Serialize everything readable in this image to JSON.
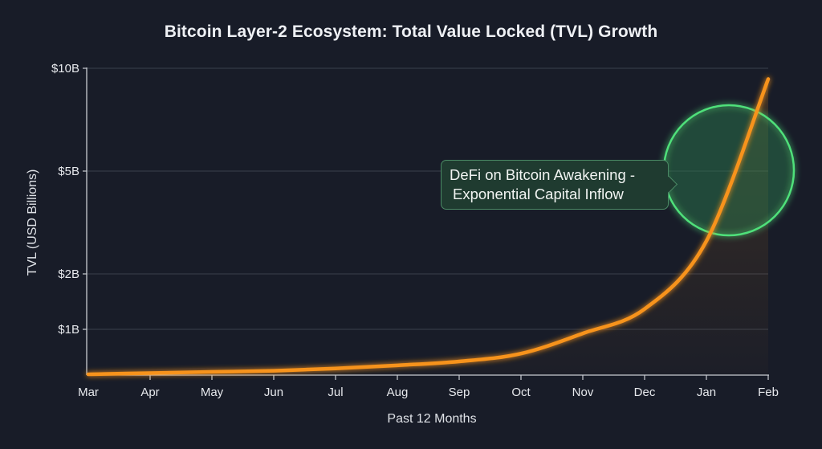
{
  "chart_data": {
    "type": "line",
    "title": "Bitcoin Layer-2 Ecosystem: Total Value Locked (TVL) Growth",
    "xlabel": "Past 12 Months",
    "ylabel": "TVL (USD Billions)",
    "yscale": "log",
    "categories": [
      "Mar",
      "Apr",
      "May",
      "Jun",
      "Jul",
      "Aug",
      "Sep",
      "Oct",
      "Nov",
      "Dec",
      "Jan",
      "Feb"
    ],
    "series": [
      {
        "name": "TVL",
        "color": "#f7931a",
        "values": [
          0.4,
          0.41,
          0.42,
          0.43,
          0.45,
          0.48,
          0.52,
          0.61,
          0.92,
          1.29,
          2.68,
          9.3
        ]
      }
    ],
    "yticks": [
      {
        "value": 1,
        "label": "$1B"
      },
      {
        "value": 2,
        "label": "$2B"
      },
      {
        "value": 5,
        "label": "$5B"
      },
      {
        "value": 10,
        "label": "$10B"
      }
    ],
    "ylim": [
      0.4,
      10
    ],
    "grid": true,
    "annotation": {
      "text_line1": "DeFi on Bitcoin Awakening -",
      "text_line2": "Exponential Capital Inflow",
      "highlight_color": "#4fe07a",
      "target_range": [
        "Jan",
        "Feb"
      ]
    }
  }
}
